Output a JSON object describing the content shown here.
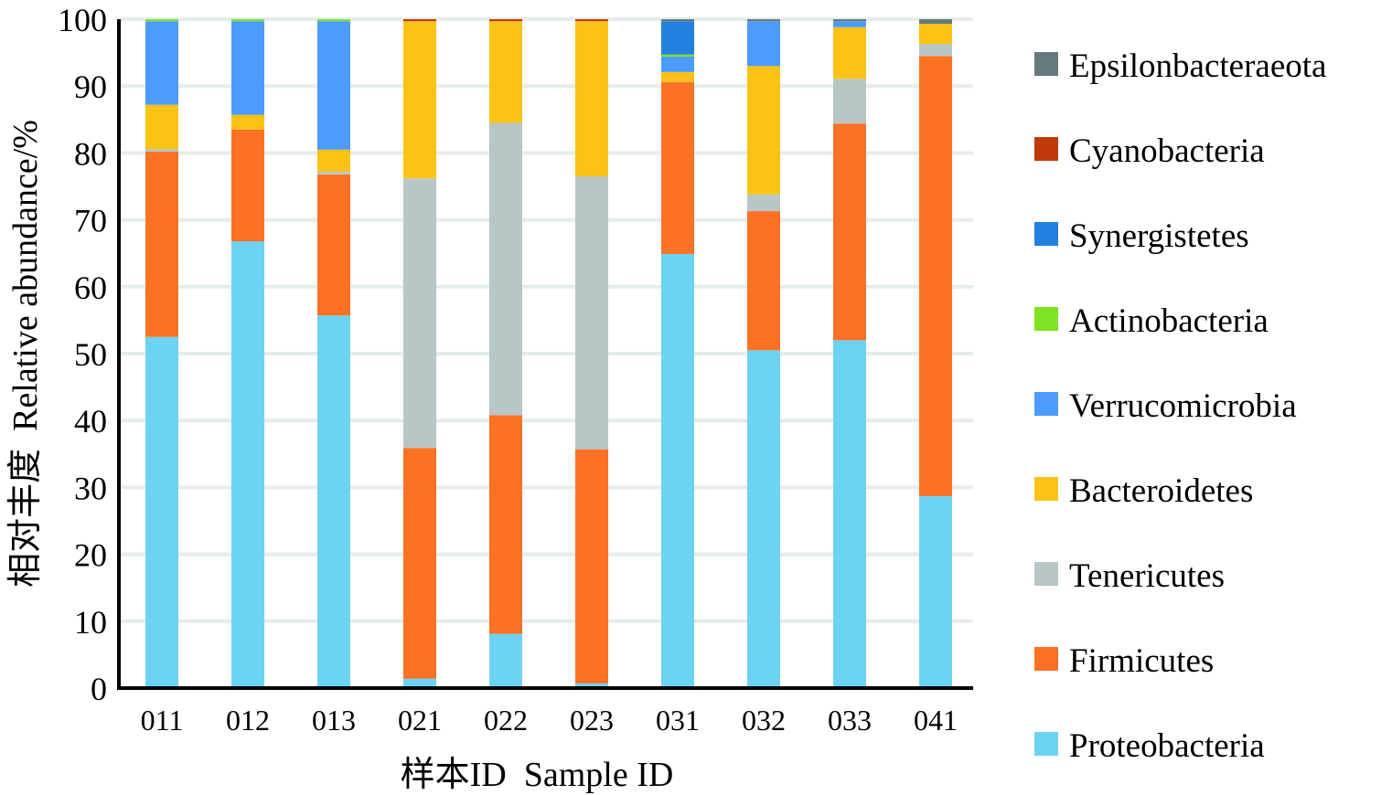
{
  "chart_data": {
    "type": "bar",
    "stacked": true,
    "title": "",
    "xlabel": "样本ID  Sample ID",
    "ylabel": "相对丰度  Relative abundance/%",
    "ylim": [
      0,
      100
    ],
    "yticks": [
      "0",
      "10",
      "20",
      "30",
      "40",
      "50",
      "60",
      "70",
      "80",
      "90",
      "100"
    ],
    "grid": true,
    "legend_position": "right",
    "categories": [
      "011",
      "012",
      "013",
      "021",
      "022",
      "023",
      "031",
      "032",
      "033",
      "041"
    ],
    "series": [
      {
        "name": "Proteobacteria",
        "color": "#6dd3f4",
        "values": [
          52.5,
          66.8,
          55.7,
          1.4,
          8.1,
          0.7,
          64.9,
          50.5,
          52.0,
          28.7
        ]
      },
      {
        "name": "Firmicutes",
        "color": "#fb7224",
        "values": [
          27.7,
          16.7,
          21.1,
          34.5,
          32.7,
          35.0,
          25.7,
          20.8,
          32.4,
          65.8
        ]
      },
      {
        "name": "Tenericutes",
        "color": "#b8c6c6",
        "values": [
          0.4,
          0.0,
          0.4,
          40.3,
          43.7,
          40.8,
          0.0,
          2.5,
          6.7,
          1.8
        ]
      },
      {
        "name": "Bacteroidetes",
        "color": "#fcc216",
        "values": [
          6.6,
          2.2,
          3.3,
          23.5,
          15.2,
          23.2,
          1.5,
          19.2,
          7.7,
          3.0
        ]
      },
      {
        "name": "Verrucomicrobia",
        "color": "#4b9cfd",
        "values": [
          12.5,
          14.0,
          19.2,
          0.0,
          0.0,
          0.0,
          2.3,
          6.7,
          0.9,
          0.0
        ]
      },
      {
        "name": "Actinobacteria",
        "color": "#7de322",
        "values": [
          0.3,
          0.3,
          0.3,
          0.0,
          0.0,
          0.0,
          0.3,
          0.0,
          0.0,
          0.0
        ]
      },
      {
        "name": "Synergistetes",
        "color": "#2480de",
        "values": [
          0.0,
          0.0,
          0.0,
          0.0,
          0.0,
          0.0,
          5.0,
          0.0,
          0.0,
          0.0
        ]
      },
      {
        "name": "Cyanobacteria",
        "color": "#bf3b0b",
        "values": [
          0.0,
          0.0,
          0.0,
          0.3,
          0.3,
          0.3,
          0.0,
          0.0,
          0.0,
          0.0
        ]
      },
      {
        "name": "Epsilonbacteraeota",
        "color": "#657b7b",
        "values": [
          0.0,
          0.0,
          0.0,
          0.0,
          0.0,
          0.0,
          0.3,
          0.3,
          0.3,
          0.7
        ]
      }
    ],
    "legend_order": [
      "Epsilonbacteraeota",
      "Cyanobacteria",
      "Synergistetes",
      "Actinobacteria",
      "Verrucomicrobia",
      "Bacteroidetes",
      "Tenericutes",
      "Firmicutes",
      "Proteobacteria"
    ]
  },
  "colors": {
    "axis": "#000000",
    "grid": "#e6ecec",
    "background": "#ffffff"
  }
}
